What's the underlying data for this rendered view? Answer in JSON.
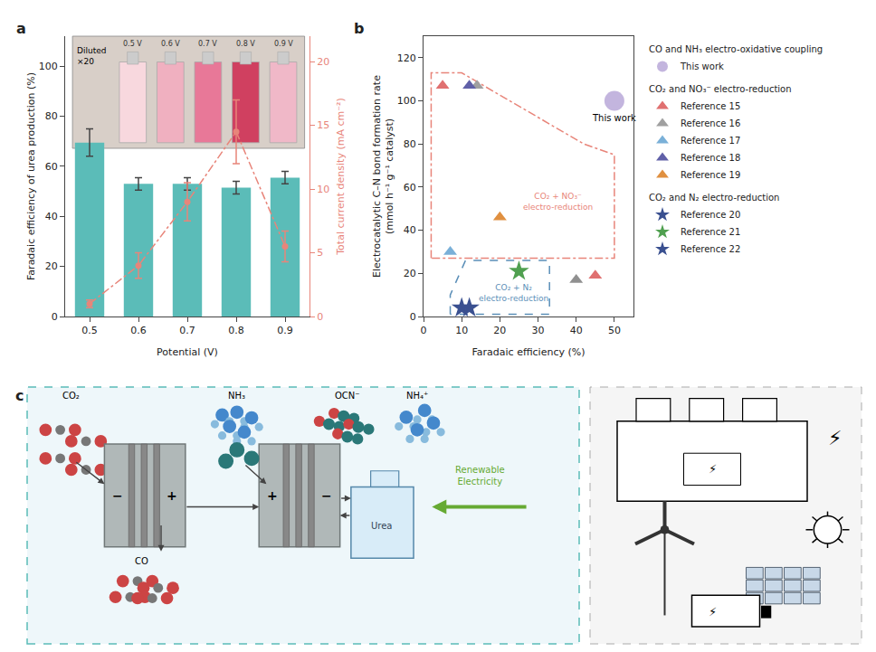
{
  "chart_data": [
    {
      "type": "bar",
      "panel_label": "a",
      "categories": [
        "0.5",
        "0.6",
        "0.7",
        "0.8",
        "0.9"
      ],
      "xlabel": "Potential (V)",
      "ylabel": "Faradaic efficiency of urea production (%)",
      "y2label": "Total current density (mA cm⁻²)",
      "ylim": [
        0,
        112
      ],
      "yticks": [
        0,
        20,
        40,
        60,
        80,
        100
      ],
      "y2lim": [
        0,
        22
      ],
      "y2ticks": [
        0,
        5,
        10,
        15,
        20
      ],
      "grid": false,
      "series": [
        {
          "type": "bar",
          "color": "#5bbcb8",
          "values": [
            69.5,
            53.0,
            53.0,
            51.5,
            55.5
          ],
          "errors": [
            5.5,
            2.5,
            2.5,
            2.5,
            2.5
          ]
        },
        {
          "type": "line",
          "axis": "y2",
          "color": "#e8857a",
          "line_style": "dashdot",
          "marker": "circle",
          "values": [
            1.0,
            4.0,
            9.0,
            14.5,
            5.5
          ],
          "errors": [
            0.3,
            1.0,
            1.5,
            2.5,
            1.2
          ]
        }
      ],
      "inset": {
        "color": "#d8cfc8",
        "labels": [
          "0.5 V",
          "0.6 V",
          "0.7 V",
          "0.8 V",
          "0.9 V"
        ],
        "colors": [
          "#f8d8de",
          "#f0b0c0",
          "#e87898",
          "#d04060",
          "#f0b8c8"
        ],
        "annotation": "Diluted\n×20"
      }
    },
    {
      "type": "scatter",
      "panel_label": "b",
      "xlabel": "Faradaic efficiency (%)",
      "ylabel": "Electrocatalytic C–N bond formation rate\n(mmol h⁻¹ g⁻¹ catalyst)",
      "xlim": [
        0,
        55
      ],
      "ylim": [
        0,
        130
      ],
      "xticks": [
        0,
        10,
        20,
        30,
        40,
        50
      ],
      "yticks": [
        0,
        20,
        40,
        60,
        80,
        100,
        120
      ],
      "grid": false,
      "legend": "right",
      "groups": [
        {
          "title": "CO and NH₃ electro-oxidative coupling",
          "series": [
            {
              "name": "This work",
              "color": "#b8a8d8",
              "marker": "circle",
              "x": [
                50
              ],
              "y": [
                100
              ],
              "annotation": "This work"
            }
          ]
        },
        {
          "title": "CO₂ and NO₃⁻ electro-reduction",
          "series": [
            {
              "name": "Reference 15",
              "color": "#e07070",
              "marker": "triangle",
              "x": [
                5
              ],
              "y": [
                107
              ]
            },
            {
              "name": "Reference 16",
              "color": "#a0a0a0",
              "marker": "triangle",
              "x": [
                14
              ],
              "y": [
                107
              ]
            },
            {
              "name": "Reference 17",
              "color": "#7ab0d8",
              "marker": "triangle",
              "x": [
                7
              ],
              "y": [
                30
              ]
            },
            {
              "name": "Reference 18",
              "color": "#6060a8",
              "marker": "triangle",
              "x": [
                12
              ],
              "y": [
                107
              ]
            },
            {
              "name": "Reference 19",
              "color": "#e09040",
              "marker": "triangle",
              "x": [
                20
              ],
              "y": [
                46
              ]
            }
          ]
        },
        {
          "title": "CO₂ and N₂ electro-reduction",
          "series": [
            {
              "name": "Reference 20",
              "color": "#3a5090",
              "marker": "star",
              "x": [
                10
              ],
              "y": [
                4
              ]
            },
            {
              "name": "Reference 21",
              "color": "#50a050",
              "marker": "star",
              "x": [
                25
              ],
              "y": [
                21
              ]
            },
            {
              "name": "Reference 22",
              "color": "#3a5090",
              "marker": "star",
              "x": [
                12
              ],
              "y": [
                4
              ]
            }
          ]
        }
      ],
      "series": [
        {
          "color": "#909090",
          "marker": "triangle",
          "x": [
            40
          ],
          "y": [
            17
          ]
        },
        {
          "color": "#e07070",
          "marker": "triangle",
          "x": [
            45
          ],
          "y": [
            19
          ]
        }
      ],
      "regions": [
        {
          "name": "CO₂ + NO₃⁻\nelectro-reduction",
          "color": "#e8857a",
          "line_style": "dashdot",
          "x": [
            2,
            2,
            10,
            42,
            50,
            50,
            42,
            2
          ],
          "y": [
            27,
            113,
            113,
            80,
            75,
            27,
            27,
            27
          ]
        },
        {
          "name": "CO₂ + N₂\nelectro-reduction",
          "color": "#5b8fb8",
          "line_style": "dash",
          "x": [
            7,
            7,
            11,
            20,
            33,
            33,
            7
          ],
          "y": [
            1,
            10,
            26,
            26,
            26,
            1,
            1
          ]
        }
      ]
    },
    {
      "type": "diagram",
      "panel_label": "c",
      "labels": {
        "co2": "CO₂",
        "co": "CO",
        "nh3": "NH₃",
        "ocn": "OCN⁻",
        "nh4": "NH₄⁺",
        "urea": "Urea",
        "energy": "Renewable\nElectricity"
      },
      "signs": [
        "−",
        "+"
      ],
      "symbol": "⚡",
      "colors": {
        "background": "#eef7fa",
        "border": "#5bbcb8",
        "panel_background": "#f5f5f5",
        "panel_border": "#aaaaaa",
        "oxygen": "#cc4444",
        "carbon": "#777777",
        "nitrogen": "#2a7878",
        "ammonia": "#4488cc",
        "hydrogen": "#88bbdd",
        "energy": "#66aa33"
      }
    }
  ]
}
